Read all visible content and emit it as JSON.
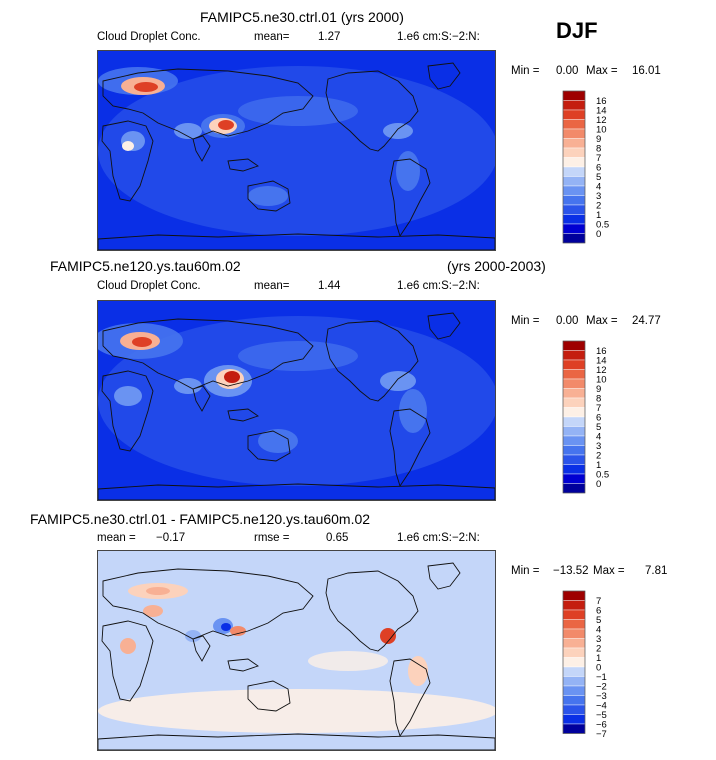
{
  "season": "DJF",
  "colors": {
    "abs_scale": [
      "#00009c",
      "#0000d2",
      "#0a2fe6",
      "#2b54ea",
      "#4674ee",
      "#6a93f2",
      "#94b3f5",
      "#c4d6f9",
      "#fdf0e6",
      "#fcd2bc",
      "#f8b094",
      "#f28a6a",
      "#ea6644",
      "#de4025",
      "#c41d0f",
      "#9e0000"
    ],
    "diff_scale": [
      "#00009c",
      "#0a2fe6",
      "#2b54ea",
      "#4674ee",
      "#6a93f2",
      "#94b3f5",
      "#c4d6f9",
      "#fdf0e6",
      "#fcd2bc",
      "#f8b094",
      "#f28a6a",
      "#ea6644",
      "#de4025",
      "#c41d0f",
      "#9e0000"
    ]
  },
  "chart_data": [
    {
      "type": "heatmap",
      "title": "FAMIPC5.ne30.ctrl.01 (yrs 2000)",
      "title_left": "",
      "title_right": "",
      "variable": "Cloud Droplet Conc.",
      "mean_label": "mean=",
      "mean_value": "1.27",
      "units": "1.e6 cm:S:−2:N:",
      "min_label": "Min =",
      "min_value": "0.00",
      "max_label": "Max =",
      "max_value": "16.01",
      "colorbar_levels": [
        "16",
        "14",
        "12",
        "10",
        "9",
        "8",
        "7",
        "6",
        "5",
        "4",
        "3",
        "2",
        "1",
        "0.5",
        "0"
      ]
    },
    {
      "type": "heatmap",
      "title": "",
      "title_left": "FAMIPC5.ne120.ys.tau60m.02",
      "title_right": "(yrs 2000-2003)",
      "variable": "Cloud Droplet Conc.",
      "mean_label": "mean=",
      "mean_value": "1.44",
      "units": "1.e6 cm:S:−2:N:",
      "min_label": "Min =",
      "min_value": "0.00",
      "max_label": "Max =",
      "max_value": "24.77",
      "colorbar_levels": [
        "16",
        "14",
        "12",
        "10",
        "9",
        "8",
        "7",
        "6",
        "5",
        "4",
        "3",
        "2",
        "1",
        "0.5",
        "0"
      ]
    },
    {
      "type": "heatmap",
      "title": "FAMIPC5.ne30.ctrl.01 - FAMIPC5.ne120.ys.tau60m.02",
      "mean_label": "mean =",
      "mean_value": "−0.17",
      "rmse_label": "rmse =",
      "rmse_value": "0.65",
      "units": "1.e6 cm:S:−2:N:",
      "min_label": "Min =",
      "min_value": "−13.52",
      "max_label": "Max =",
      "max_value": "7.81",
      "colorbar_levels": [
        "7",
        "6",
        "5",
        "4",
        "3",
        "2",
        "1",
        "0",
        "−1",
        "−2",
        "−3",
        "−4",
        "−5",
        "−6",
        "−7"
      ]
    }
  ]
}
